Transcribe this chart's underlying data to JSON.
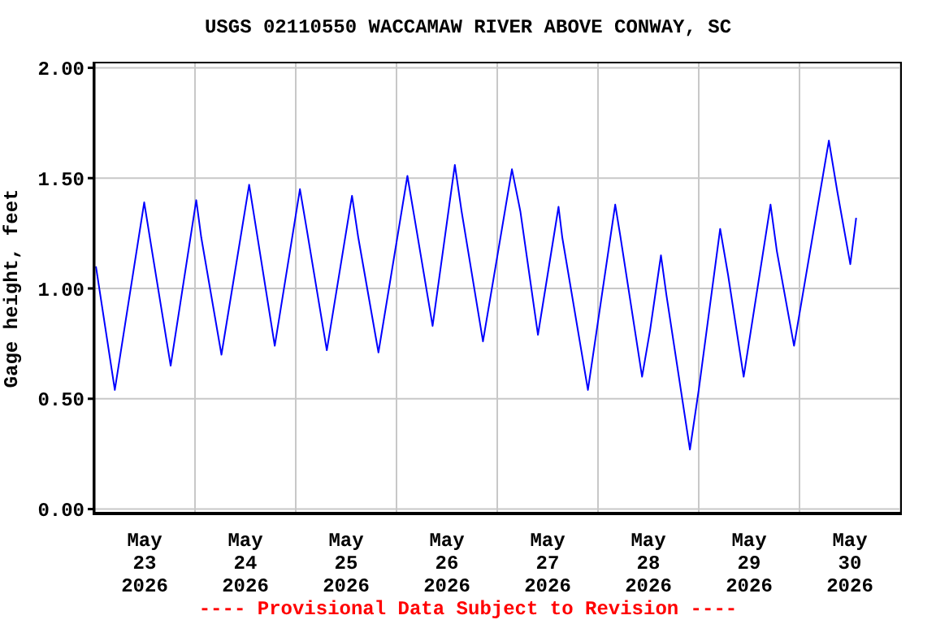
{
  "chart_data": {
    "type": "line",
    "title": "USGS 02110550 WACCAMAW RIVER ABOVE CONWAY, SC",
    "ylabel": "Gage height, feet",
    "annotations": [
      "---- Provisional Data Subject to Revision ----"
    ],
    "x": [
      "2026-05-23T00:24",
      "2026-05-23T04:54",
      "2026-05-23T11:54",
      "2026-05-23T13:30",
      "2026-05-23T18:12",
      "2026-05-24T00:18",
      "2026-05-24T01:30",
      "2026-05-24T06:18",
      "2026-05-24T12:54",
      "2026-05-24T19:00",
      "2026-05-25T01:00",
      "2026-05-25T02:36",
      "2026-05-25T07:24",
      "2026-05-25T13:24",
      "2026-05-25T14:54",
      "2026-05-25T19:42",
      "2026-05-26T02:36",
      "2026-05-26T04:12",
      "2026-05-26T08:36",
      "2026-05-26T13:54",
      "2026-05-26T15:30",
      "2026-05-26T20:36",
      "2026-05-27T03:30",
      "2026-05-27T05:30",
      "2026-05-27T09:42",
      "2026-05-27T14:36",
      "2026-05-27T15:30",
      "2026-05-27T21:36",
      "2026-05-28T04:06",
      "2026-05-28T05:18",
      "2026-05-28T10:30",
      "2026-05-28T12:24",
      "2026-05-28T15:00",
      "2026-05-28T16:18",
      "2026-05-28T21:54",
      "2026-05-29T00:00",
      "2026-05-29T05:06",
      "2026-05-29T07:00",
      "2026-05-29T10:42",
      "2026-05-29T17:06",
      "2026-05-29T18:36",
      "2026-05-29T22:42",
      "2026-05-30T07:00",
      "2026-05-30T09:00",
      "2026-05-30T12:06",
      "2026-05-30T13:30"
    ],
    "series": [
      {
        "color": "#0000ff",
        "values": [
          1.1,
          0.54,
          1.39,
          1.2,
          0.65,
          1.4,
          1.23,
          0.7,
          1.47,
          0.74,
          1.45,
          1.27,
          0.72,
          1.42,
          1.23,
          0.71,
          1.51,
          1.33,
          0.83,
          1.56,
          1.35,
          0.76,
          1.54,
          1.35,
          0.79,
          1.37,
          1.23,
          0.54,
          1.38,
          1.24,
          0.6,
          0.81,
          1.15,
          0.97,
          0.27,
          0.54,
          1.27,
          1.06,
          0.6,
          1.38,
          1.17,
          0.74,
          1.67,
          1.44,
          1.11,
          1.32
        ]
      }
    ],
    "xlim": [
      "2026-05-23T00:00",
      "2026-05-31T00:00"
    ],
    "xticks": [
      {
        "value": "2026-05-23T00:00",
        "label": null
      },
      {
        "value": "2026-05-23T12:00",
        "label": "May\n23\n2026"
      },
      {
        "value": "2026-05-24T00:00",
        "label": null
      },
      {
        "value": "2026-05-24T12:00",
        "label": "May\n24\n2026"
      },
      {
        "value": "2026-05-25T00:00",
        "label": null
      },
      {
        "value": "2026-05-25T12:00",
        "label": "May\n25\n2026"
      },
      {
        "value": "2026-05-26T00:00",
        "label": null
      },
      {
        "value": "2026-05-26T12:00",
        "label": "May\n26\n2026"
      },
      {
        "value": "2026-05-27T00:00",
        "label": null
      },
      {
        "value": "2026-05-27T12:00",
        "label": "May\n27\n2026"
      },
      {
        "value": "2026-05-28T00:00",
        "label": null
      },
      {
        "value": "2026-05-28T12:00",
        "label": "May\n28\n2026"
      },
      {
        "value": "2026-05-29T00:00",
        "label": null
      },
      {
        "value": "2026-05-29T12:00",
        "label": "May\n29\n2026"
      },
      {
        "value": "2026-05-30T00:00",
        "label": null
      },
      {
        "value": "2026-05-30T12:00",
        "label": "May\n30\n2026"
      },
      {
        "value": "2026-05-31T00:00",
        "label": null
      }
    ],
    "ylim": [
      -0.02,
      2.02
    ],
    "yticks": [
      {
        "value": 0,
        "label": "0.00"
      },
      {
        "value": 0.5,
        "label": "0.50"
      },
      {
        "value": 1,
        "label": "1.00"
      },
      {
        "value": 1.5,
        "label": "1.50"
      },
      {
        "value": 2,
        "label": "2.00"
      }
    ],
    "grid": true,
    "legend": false,
    "marker": "none",
    "line_style": "solid"
  }
}
